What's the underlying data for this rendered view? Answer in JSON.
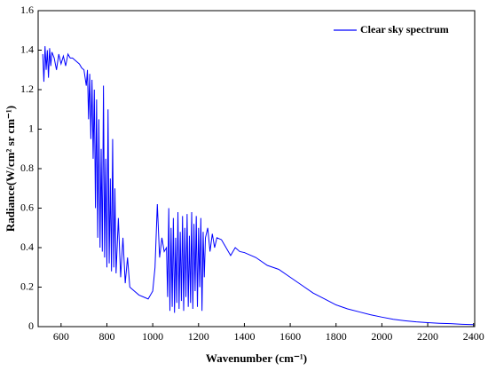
{
  "chart_data": {
    "type": "line",
    "xlabel": "Wavenumber (cm⁻¹)",
    "ylabel": "Radiance(W/cm² sr cm⁻¹)",
    "legend": "upper right",
    "xlim": [
      500,
      2405
    ],
    "ylim": [
      0,
      1.6
    ],
    "xticks": [
      600,
      800,
      1000,
      1200,
      1400,
      1600,
      1800,
      2000,
      2200,
      2400
    ],
    "yticks": [
      0,
      0.2,
      0.4,
      0.6,
      0.8,
      1,
      1.2,
      1.4,
      1.6
    ],
    "x": [
      520,
      525,
      530,
      535,
      540,
      545,
      550,
      555,
      560,
      570,
      580,
      590,
      600,
      610,
      620,
      630,
      640,
      650,
      660,
      670,
      680,
      690,
      700,
      710,
      715,
      720,
      725,
      730,
      735,
      740,
      745,
      750,
      755,
      760,
      765,
      770,
      775,
      780,
      785,
      790,
      795,
      800,
      805,
      810,
      815,
      820,
      825,
      830,
      835,
      840,
      850,
      860,
      870,
      880,
      890,
      900,
      920,
      940,
      960,
      980,
      1000,
      1010,
      1020,
      1030,
      1040,
      1050,
      1060,
      1065,
      1070,
      1075,
      1080,
      1085,
      1090,
      1095,
      1100,
      1105,
      1110,
      1115,
      1120,
      1125,
      1130,
      1135,
      1140,
      1145,
      1150,
      1155,
      1160,
      1165,
      1170,
      1175,
      1180,
      1185,
      1190,
      1195,
      1200,
      1205,
      1210,
      1215,
      1220,
      1225,
      1230,
      1240,
      1250,
      1260,
      1270,
      1280,
      1300,
      1320,
      1340,
      1360,
      1380,
      1400,
      1450,
      1500,
      1550,
      1600,
      1650,
      1700,
      1750,
      1800,
      1850,
      1900,
      1950,
      2000,
      2050,
      2100,
      2150,
      2200,
      2250,
      2300,
      2350,
      2400
    ],
    "series": [
      {
        "name": "Clear sky spectrum",
        "color": "#0000ff",
        "values": [
          1.38,
          1.24,
          1.42,
          1.3,
          1.4,
          1.26,
          1.41,
          1.32,
          1.39,
          1.36,
          1.3,
          1.38,
          1.33,
          1.37,
          1.32,
          1.38,
          1.36,
          1.36,
          1.35,
          1.34,
          1.33,
          1.31,
          1.3,
          1.22,
          1.3,
          1.05,
          1.28,
          0.95,
          1.25,
          0.85,
          1.2,
          0.6,
          1.15,
          0.45,
          1.05,
          0.4,
          0.9,
          0.38,
          1.22,
          0.35,
          0.85,
          0.3,
          1.1,
          0.32,
          0.75,
          0.28,
          0.95,
          0.3,
          0.7,
          0.27,
          0.55,
          0.25,
          0.45,
          0.22,
          0.35,
          0.2,
          0.18,
          0.16,
          0.15,
          0.14,
          0.18,
          0.3,
          0.62,
          0.35,
          0.45,
          0.38,
          0.4,
          0.15,
          0.6,
          0.08,
          0.5,
          0.1,
          0.55,
          0.07,
          0.45,
          0.12,
          0.58,
          0.09,
          0.48,
          0.13,
          0.56,
          0.08,
          0.5,
          0.15,
          0.57,
          0.1,
          0.46,
          0.12,
          0.58,
          0.09,
          0.52,
          0.18,
          0.56,
          0.1,
          0.5,
          0.2,
          0.55,
          0.08,
          0.48,
          0.25,
          0.45,
          0.5,
          0.38,
          0.47,
          0.4,
          0.45,
          0.44,
          0.4,
          0.36,
          0.4,
          0.38,
          0.375,
          0.35,
          0.31,
          0.29,
          0.25,
          0.21,
          0.17,
          0.14,
          0.11,
          0.09,
          0.075,
          0.06,
          0.048,
          0.037,
          0.03,
          0.024,
          0.02,
          0.017,
          0.015,
          0.012,
          0.01
        ]
      }
    ]
  }
}
